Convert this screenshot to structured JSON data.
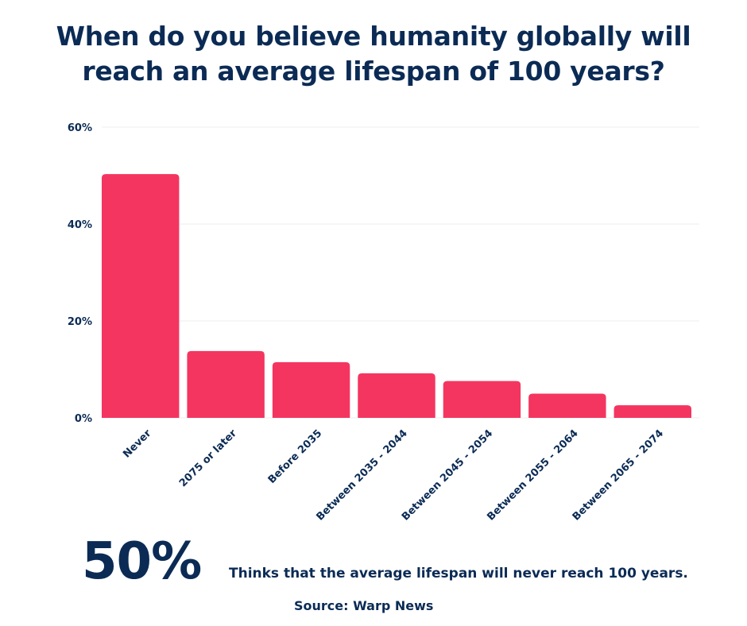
{
  "chart_data": {
    "type": "bar",
    "title": "When do you believe humanity globally will reach an average lifespan of 100 years?",
    "categories": [
      "Never",
      "2075 or later",
      "Before 2035",
      "Between 2035 - 2044",
      "Between 2045 - 2054",
      "Between 2055 - 2064",
      "Between 2065 - 2074"
    ],
    "values": [
      50.3,
      13.8,
      11.5,
      9.2,
      7.6,
      5.0,
      2.6
    ],
    "ylim": [
      0,
      60
    ],
    "yticks": [
      0,
      20,
      40,
      60
    ],
    "ytick_labels": [
      "0%",
      "20%",
      "40%",
      "60%"
    ],
    "xlabel": "",
    "ylabel": "",
    "grid": true,
    "bar_color": "#f43560",
    "grid_color": "#eeeeee"
  },
  "highlight": {
    "value": "50%",
    "caption": "Thinks that the average  lifespan will never reach 100 years."
  },
  "source": "Source: Warp News",
  "colors": {
    "text": "#0b2b55",
    "bar": "#f43560"
  }
}
